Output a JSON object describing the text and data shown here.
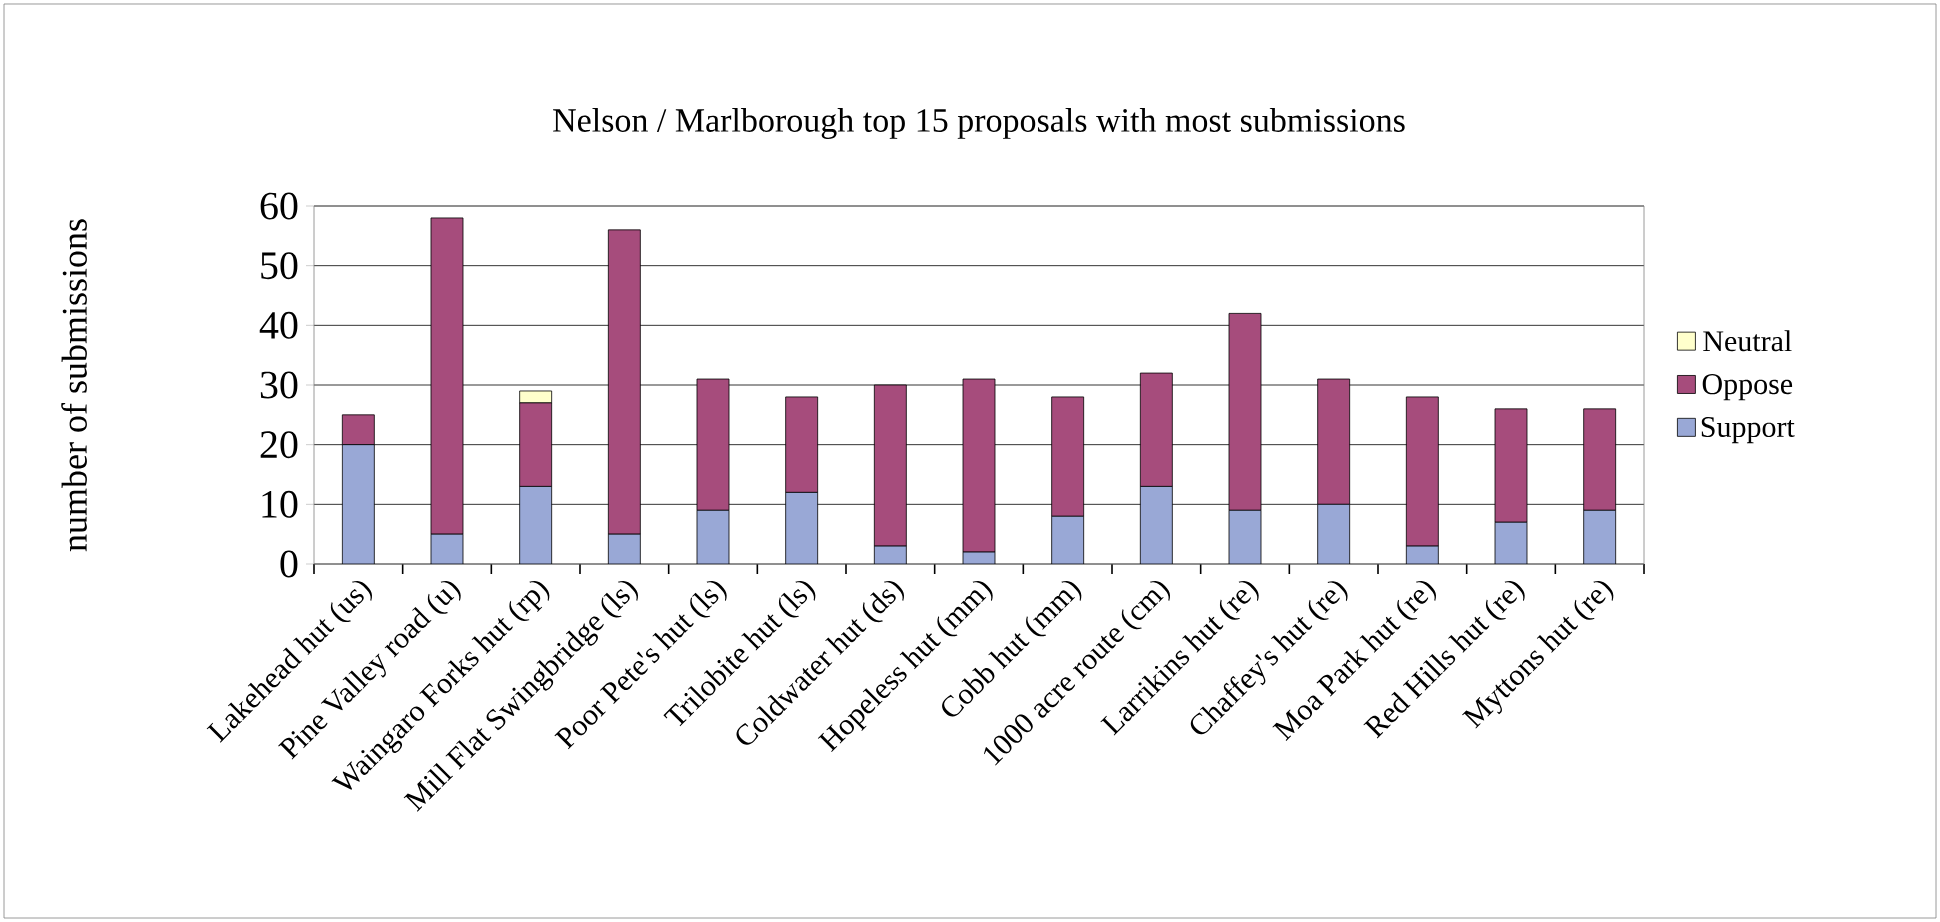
{
  "chart_data": {
    "type": "bar",
    "stacked": true,
    "title": "Nelson / Marlborough top 15 proposals with most submissions",
    "ylabel": "number of submissions",
    "categories": [
      "Lakehead hut (us)",
      "Pine Valley road (u)",
      "Waingaro Forks hut (rp)",
      "Mill Flat Swingbridge (ls)",
      "Poor Pete's hut (ls)",
      "Trilobite hut (ls)",
      "Coldwater hut (ds)",
      "Hopeless hut (mm)",
      "Cobb hut (mm)",
      "1000 acre route (cm)",
      "Larrikins hut (re)",
      "Chaffey's hut (re)",
      "Moa Park hut (re)",
      "Red Hills hut (re)",
      "Myttons hut (re)"
    ],
    "series": [
      {
        "name": "Support",
        "color": "#99a8d6",
        "values": [
          20,
          5,
          13,
          5,
          9,
          12,
          3,
          2,
          8,
          13,
          9,
          10,
          3,
          7,
          9
        ]
      },
      {
        "name": "Oppose",
        "color": "#a64c7c",
        "values": [
          5,
          53,
          14,
          51,
          22,
          16,
          27,
          29,
          20,
          19,
          33,
          21,
          25,
          19,
          17
        ]
      },
      {
        "name": "Neutral",
        "color": "#ffffcc",
        "values": [
          null,
          null,
          2,
          null,
          null,
          null,
          null,
          null,
          null,
          null,
          null,
          null,
          null,
          null,
          null
        ]
      }
    ],
    "ylim": [
      0,
      60
    ],
    "yticks": [
      0,
      10,
      20,
      30,
      40,
      50,
      60
    ],
    "grid": "y",
    "legend": "right"
  }
}
